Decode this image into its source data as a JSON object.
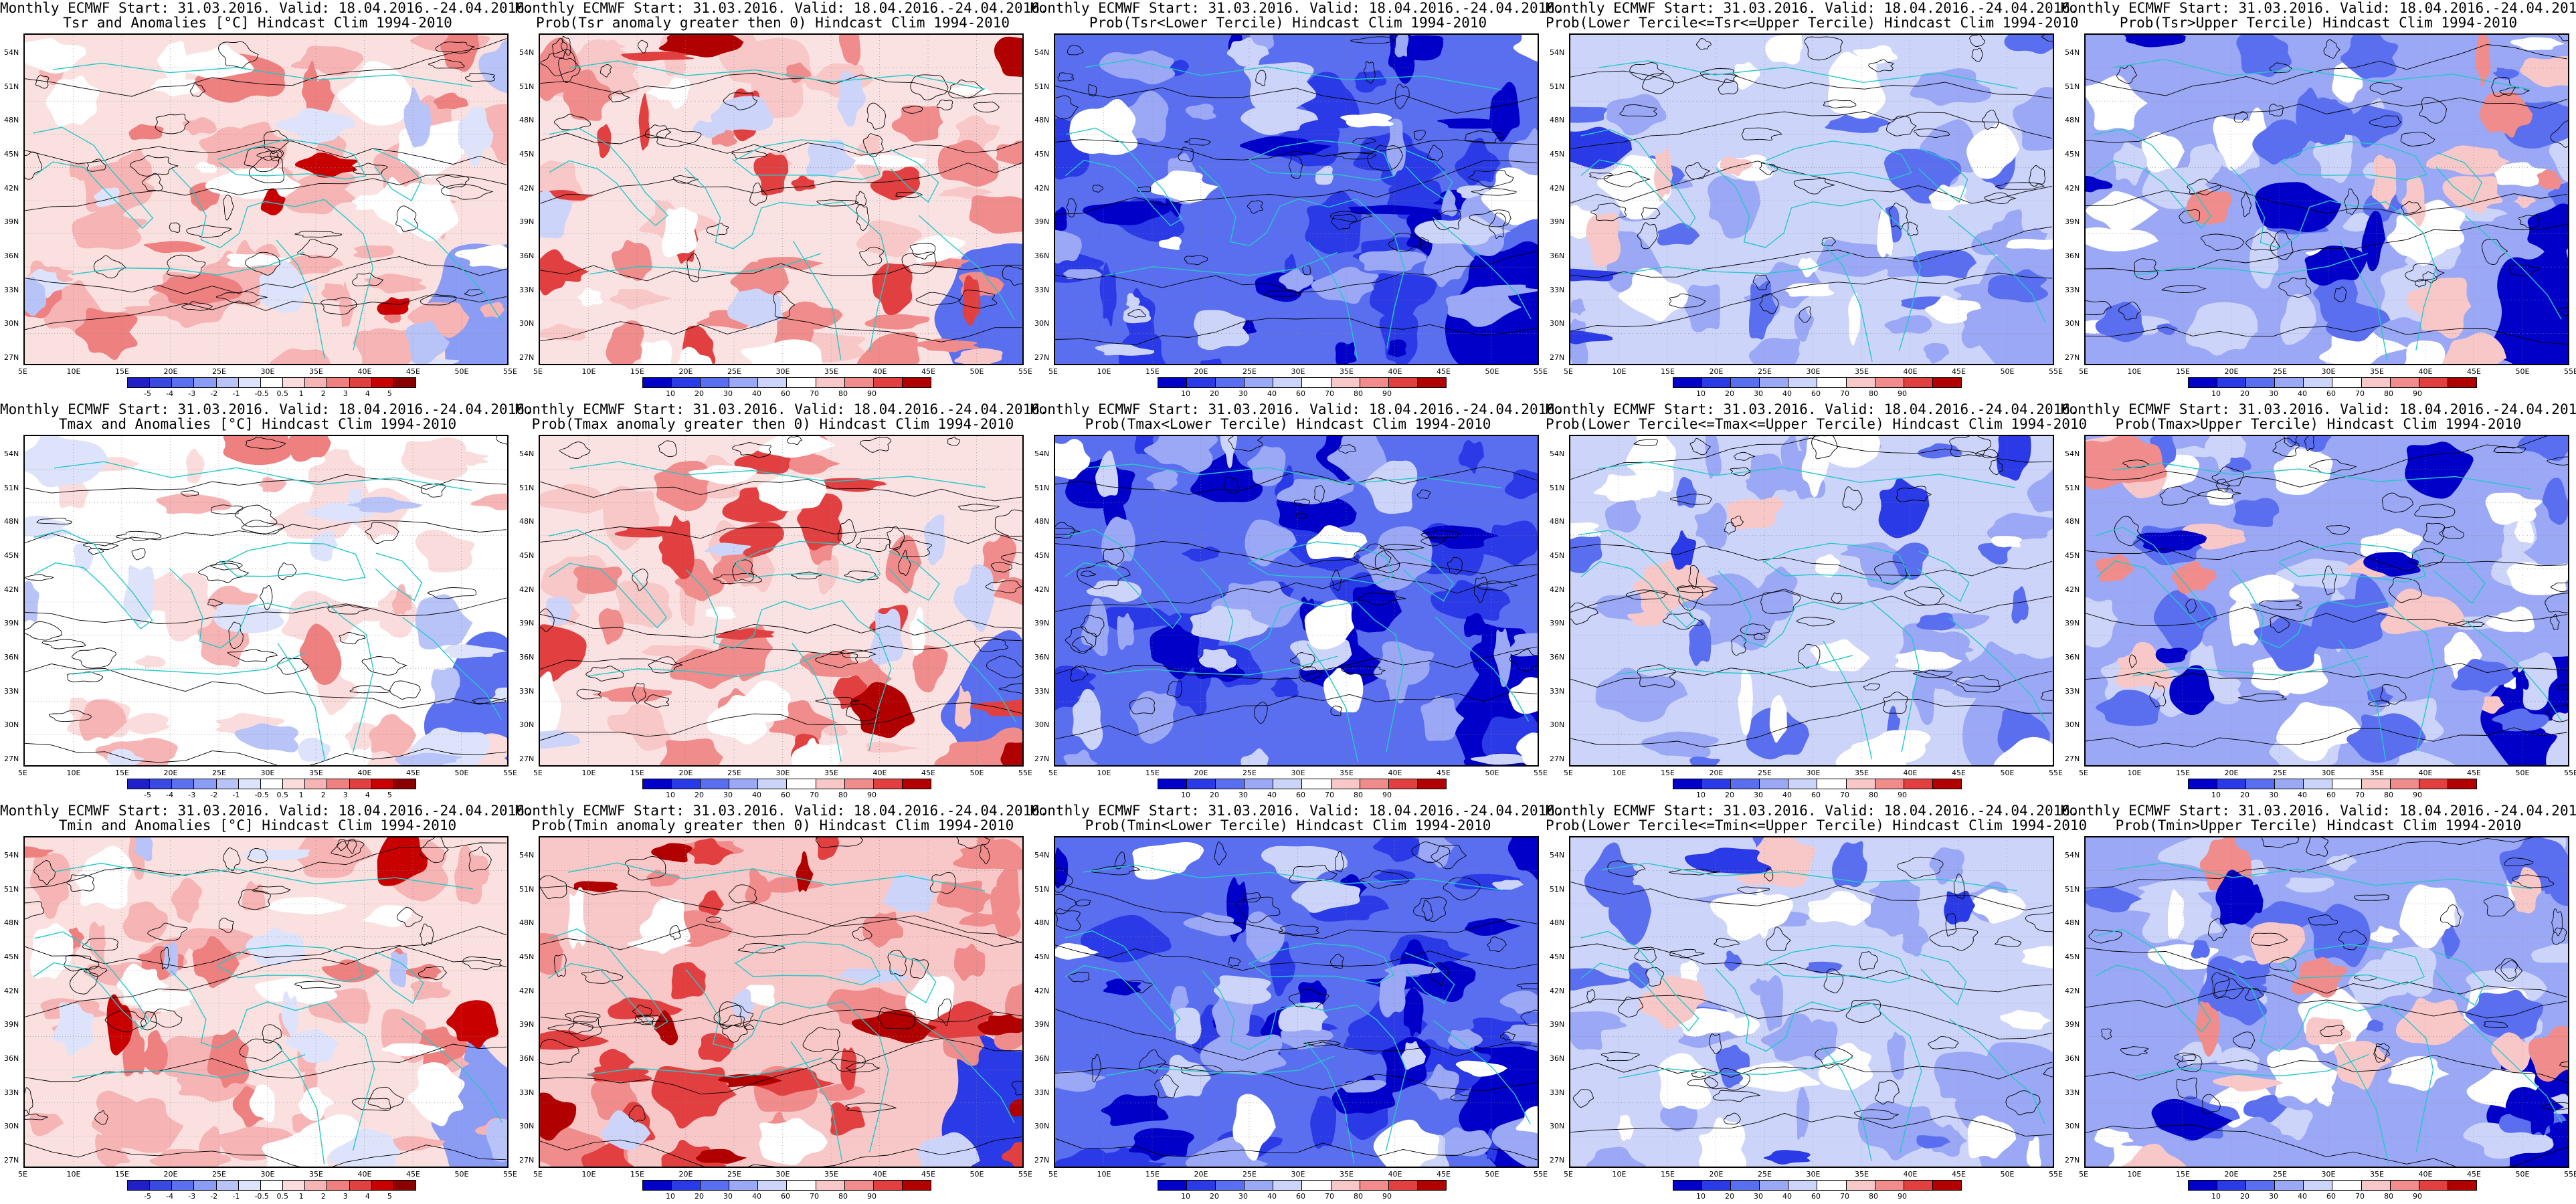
{
  "row_titles": [
    {
      "line1": "Monthly ECMWF Start: 31.03.2016. Valid: 18.04.2016.-24.04.2016.",
      "panels": [
        "Tsr and Anomalies [°C] Hindcast Clim 1994-2010",
        "Prob(Tsr anomaly greater then 0) Hindcast Clim 1994-2010",
        "Prob(Tsr<Lower Tercile) Hindcast Clim 1994-2010",
        "Prob(Lower Tercile<=Tsr<=Upper Tercile) Hindcast Clim 1994-2010",
        "Prob(Tsr>Upper Tercile) Hindcast Clim 1994-2010"
      ]
    },
    {
      "line1": "Monthly ECMWF Start: 31.03.2016. Valid: 18.04.2016.-24.04.2016.",
      "panels": [
        "Tmax and Anomalies [°C] Hindcast Clim 1994-2010",
        "Prob(Tmax anomaly greater then 0) Hindcast Clim 1994-2010",
        "Prob(Tmax<Lower Tercile) Hindcast Clim 1994-2010",
        "Prob(Lower Tercile<=Tmax<=Upper Tercile) Hindcast Clim 1994-2010",
        "Prob(Tmax>Upper Tercile) Hindcast Clim 1994-2010"
      ]
    },
    {
      "line1": "Monthly ECMWF Start: 31.03.2016. Valid: 18.04.2016.-24.04.2016.",
      "panels": [
        "Tmin and Anomalies [°C] Hindcast Clim 1994-2010",
        "Prob(Tmin anomaly greater then 0) Hindcast Clim 1994-2010",
        "Prob(Tmin<Lower Tercile) Hindcast Clim 1994-2010",
        "Prob(Lower Tercile<=Tmin<=Upper Tercile) Hindcast Clim 1994-2010",
        "Prob(Tmin>Upper Tercile) Hindcast Clim 1994-2010"
      ]
    }
  ],
  "lat_labels": [
    "54N",
    "51N",
    "48N",
    "45N",
    "42N",
    "39N",
    "36N",
    "33N",
    "30N",
    "27N"
  ],
  "lon_labels": [
    "5E",
    "10E",
    "15E",
    "20E",
    "25E",
    "30E",
    "35E",
    "40E",
    "45E",
    "50E",
    "55E"
  ],
  "anomaly_legend": {
    "labels": [
      "-5",
      "-4",
      "-3",
      "-2",
      "-1",
      "-0.5",
      "0.5",
      "1",
      "2",
      "3",
      "4",
      "5"
    ],
    "colors": [
      "#2020c8",
      "#3a4ae0",
      "#5a70ee",
      "#8a9cf4",
      "#b8c4f8",
      "#dde3fb",
      "#ffffff",
      "#fbdcdc",
      "#f6b4b4",
      "#ee8080",
      "#e04040",
      "#c80000",
      "#8a0000"
    ]
  },
  "prob_legend": {
    "labels": [
      "10",
      "20",
      "30",
      "40",
      "60",
      "70",
      "80",
      "90"
    ],
    "colors": [
      "#0000c8",
      "#2a3ae6",
      "#5a6ef0",
      "#9aa8f6",
      "#cdd4fa",
      "#ffffff",
      "#f8c8c8",
      "#f08c8c",
      "#e24040",
      "#b00000"
    ]
  },
  "panel_types": [
    "anomaly",
    "prob",
    "prob",
    "prob",
    "prob"
  ],
  "map_themes": [
    [
      "anom-warm",
      "prob-warm",
      "prob-cold",
      "prob-mid",
      "prob-upper"
    ],
    [
      "anom-neutral",
      "prob-warm",
      "prob-cold",
      "prob-mid",
      "prob-upper"
    ],
    [
      "anom-warm",
      "prob-hot",
      "prob-cold",
      "prob-mid",
      "prob-upper"
    ]
  ],
  "colors": {
    "coastline": "#25c8c8",
    "contour": "#000000"
  }
}
